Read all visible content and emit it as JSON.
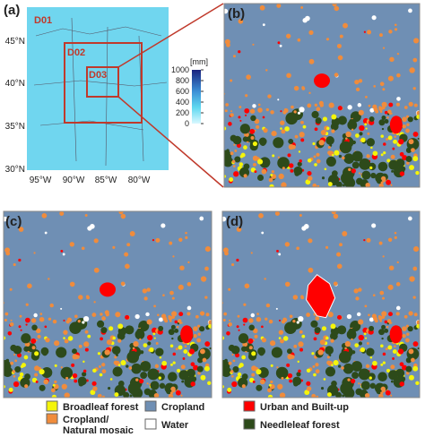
{
  "panels": {
    "a": {
      "label": "(a)",
      "domains": [
        "D01",
        "D02",
        "D03"
      ],
      "lat_labels": [
        "45°N",
        "40°N",
        "35°N",
        "30°N"
      ],
      "lon_labels": [
        "95°W",
        "90°W",
        "85°W",
        "80°W"
      ],
      "colorbar": {
        "unit": "[mm]",
        "lim": [
          0,
          1000
        ],
        "ticks": [
          0,
          200,
          400,
          600,
          800,
          1000
        ]
      }
    },
    "b": {
      "label": "(b)"
    },
    "c": {
      "label": "(c)"
    },
    "d": {
      "label": "(d)"
    }
  },
  "legend": [
    {
      "name": "Broadleaf forest",
      "color": "#f5f50a"
    },
    {
      "name": "Cropland/\nNatural mosaic",
      "color": "#f08c3c"
    },
    {
      "name": "Cropland",
      "color": "#6f8fb4"
    },
    {
      "name": "Water",
      "color": "#ffffff"
    },
    {
      "name": "Urban and Built-up",
      "color": "#ff0000"
    },
    {
      "name": "Needleleaf forest",
      "color": "#2d4a1a"
    }
  ]
}
